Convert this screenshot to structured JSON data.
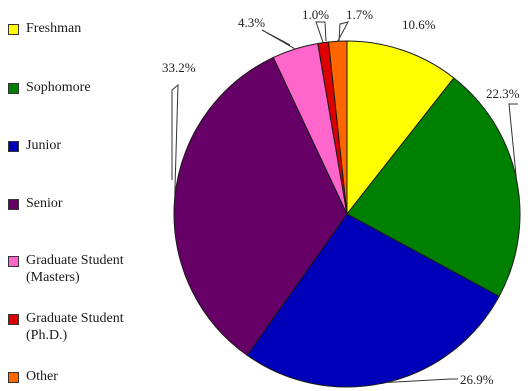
{
  "chart_data": {
    "type": "pie",
    "title": "",
    "categories": [
      "Freshman",
      "Sophomore",
      "Junior",
      "Senior",
      "Graduate Student\n(Masters)",
      "Graduate Student\n(Ph.D.)",
      "Other"
    ],
    "values": [
      10.6,
      22.3,
      26.9,
      33.2,
      4.3,
      1.0,
      1.7
    ],
    "labels": [
      "10.6%",
      "22.3%",
      "26.9%",
      "33.2%",
      "4.3%",
      "1.0%",
      "1.7%"
    ],
    "colors": [
      "#ffff00",
      "#008000",
      "#0000b8",
      "#660066",
      "#ff66cc",
      "#dd0000",
      "#ff6600"
    ],
    "legend_position": "left",
    "start_angle_deg": 0,
    "direction": "clockwise"
  }
}
